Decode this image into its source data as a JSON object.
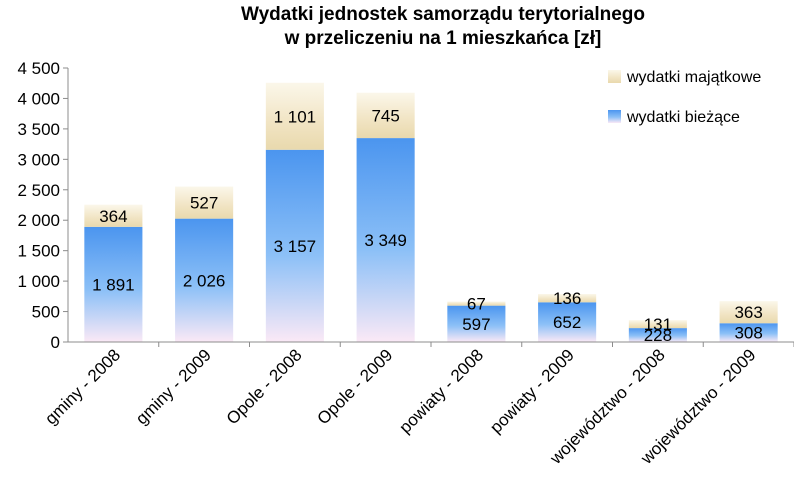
{
  "chart_data": {
    "type": "bar",
    "stacked": true,
    "title": "Wydatki jednostek samorządu terytorialnego",
    "subtitle": "w przeliczeniu na 1 mieszkańca [zł]",
    "xlabel": "",
    "ylabel": "",
    "ylim": [
      0,
      4500
    ],
    "yticks": [
      0,
      500,
      1000,
      1500,
      2000,
      2500,
      3000,
      3500,
      4000,
      4500
    ],
    "ytick_labels": [
      "0",
      "500",
      "1 000",
      "1 500",
      "2 000",
      "2 500",
      "3 000",
      "3 500",
      "4 000",
      "4 500"
    ],
    "categories": [
      "gminy - 2008",
      "gminy - 2009",
      "Opole - 2008",
      "Opole - 2009",
      "powiaty - 2008",
      "powiaty - 2009",
      "województwo - 2008",
      "województwo - 2009"
    ],
    "series": [
      {
        "name": "wydatki bieżące",
        "color": "#5aa0f0",
        "values": [
          1891,
          2026,
          3157,
          3349,
          597,
          652,
          228,
          308
        ],
        "labels": [
          "1 891",
          "2 026",
          "3 157",
          "3 349",
          "597",
          "652",
          "228",
          "308"
        ]
      },
      {
        "name": "wydatki majątkowe",
        "color": "#f3e6c8",
        "values": [
          364,
          527,
          1101,
          745,
          67,
          136,
          131,
          363
        ],
        "labels": [
          "364",
          "527",
          "1 101",
          "745",
          "67",
          "136",
          "131",
          "363"
        ]
      }
    ],
    "grid": false,
    "legend": "top-right"
  }
}
